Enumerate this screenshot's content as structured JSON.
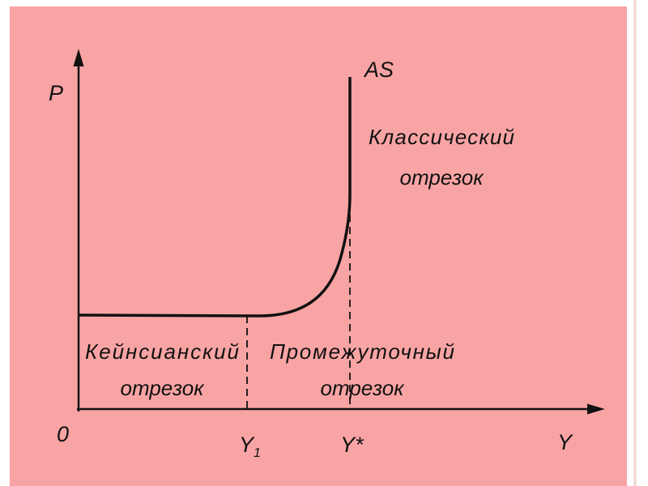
{
  "diagram": {
    "axis_y_label": "P",
    "axis_x_label": "Y",
    "origin_label": "0",
    "curve_label": "AS",
    "x_marks": [
      {
        "main": "Y",
        "sub": "1"
      },
      {
        "main": "Y*"
      }
    ],
    "segments": {
      "classical": [
        "Классический",
        "отрезок"
      ],
      "keynesian": [
        "Кейнсианский",
        "отрезок"
      ],
      "intermediate": [
        "Промежуточный",
        "отрезок"
      ]
    }
  }
}
